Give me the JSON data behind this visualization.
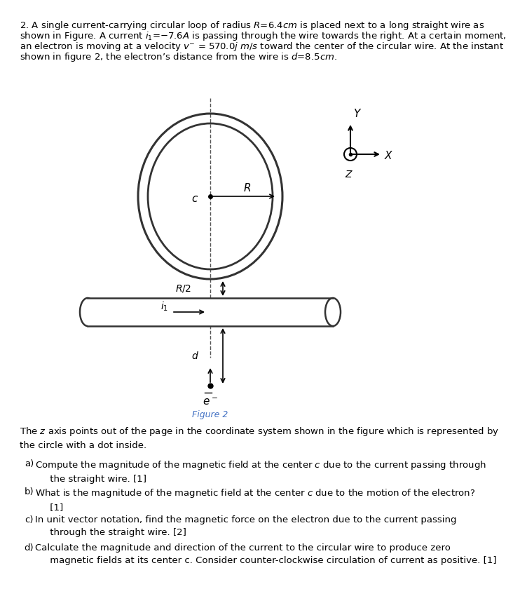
{
  "title_text": "2. A single current-carrying circular loop of radius $R$=6.4$cm$ is placed next to a long straight wire as\nshown in Figure. A current $i_1$=−7.6$A$ is passing through the wire towards the right. At a certain moment,\nan electron is moving at a velocity $v^-$ = 570.0$j$ $m/s$ toward the center of the circular wire. At the instant\nshown in figure 2, the electron’s distance from the wire is $d$=8.5$cm$.",
  "caption": "Figure 2",
  "z_axis_note": "The $z$ axis points out of the page in the coordinate system shown in the figure which is represented by\nthe circle with a dot inside.",
  "parts": [
    "a) Compute the magnitude of the magnetic field at the center $c$ due to the current passing through\n   the straight wire. [1]",
    "b) What is the magnitude of the magnetic field at the center $c$ due to the motion of the electron?\n   [1]",
    "c) In unit vector notation, find the magnetic force on the electron due to the current passing\n   through the straight wire. [2]",
    "d) Calculate the magnitude and direction of the current to the circular wire to produce zero\n   magnetic fields at its center c. Consider counter-clockwise circulation of current as positive. [1]"
  ],
  "bg_color": "#ffffff",
  "text_color": "#000000",
  "fig_label_color": "#4472c4"
}
